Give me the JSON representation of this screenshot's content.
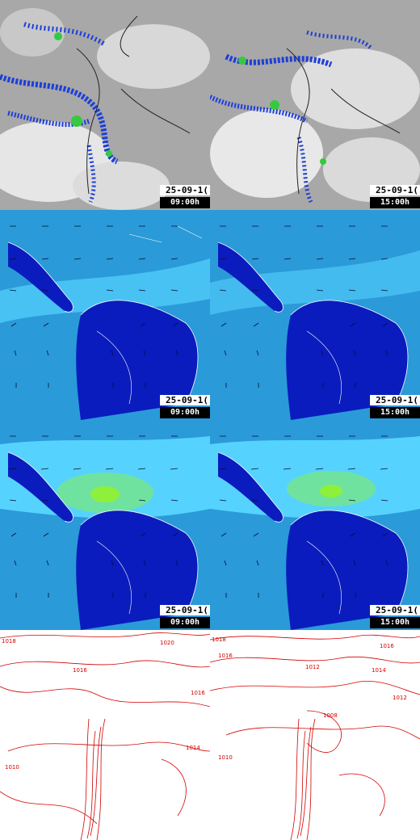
{
  "colors": {
    "precip_bg": "#b9b9b9",
    "precip_heavy": "#1e3fd8",
    "precip_core": "#35c940",
    "wind_ocean": "#2a9ad8",
    "wind_land": "#0a1cbe",
    "wind_fast": "#56d2ff",
    "wind_peak": "#8ef03a",
    "isobar": "#d40000"
  },
  "rows": [
    {
      "id": "precipitation",
      "panels": [
        {
          "date": "25-09-1(",
          "time": "09:00h"
        },
        {
          "date": "25-09-1(",
          "time": "15:00h"
        }
      ]
    },
    {
      "id": "wind-low",
      "panels": [
        {
          "date": "25-09-1(",
          "time": "09:00h"
        },
        {
          "date": "25-09-1(",
          "time": "15:00h"
        }
      ]
    },
    {
      "id": "wind-high",
      "panels": [
        {
          "date": "25-09-1(",
          "time": "09:00h"
        },
        {
          "date": "25-09-1(",
          "time": "15:00h"
        }
      ]
    },
    {
      "id": "pressure",
      "panels": [
        {
          "isobar_labels": [
            "1018",
            "1020",
            "1016",
            "1016",
            "1014",
            "1010"
          ]
        },
        {
          "isobar_labels": [
            "1018",
            "1016",
            "1014",
            "1012",
            "1012",
            "1008",
            "1010",
            "1016"
          ]
        }
      ]
    }
  ]
}
